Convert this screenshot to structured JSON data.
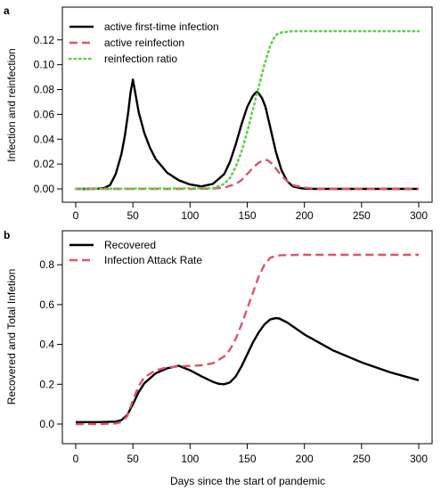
{
  "xlabel": "Days since the start of pandemic",
  "chart_data": [
    {
      "panel": "a",
      "type": "line",
      "xlabel": "",
      "ylabel": "Infection and reinfection",
      "xlim": [
        0,
        300
      ],
      "ylim": [
        0,
        0.127
      ],
      "xticks": [
        0,
        50,
        100,
        150,
        200,
        250,
        300
      ],
      "yticks": [
        0.0,
        0.02,
        0.04,
        0.06,
        0.08,
        0.1,
        0.12
      ],
      "ytick_labels": [
        "0.00",
        "0.02",
        "0.04",
        "0.06",
        "0.08",
        "0.10",
        "0.12"
      ],
      "legend": "top-left",
      "grid": false,
      "series": [
        {
          "name": "active first-time infection",
          "color": "#000000",
          "style": "solid",
          "x": [
            0,
            10,
            20,
            25,
            30,
            35,
            40,
            43,
            46,
            48,
            50,
            52,
            55,
            60,
            65,
            70,
            80,
            90,
            100,
            110,
            120,
            130,
            135,
            140,
            145,
            150,
            155,
            158,
            160,
            163,
            166,
            170,
            175,
            180,
            185,
            190,
            195,
            200,
            210,
            220,
            250,
            300
          ],
          "y": [
            0,
            0,
            0.0002,
            0.0008,
            0.003,
            0.012,
            0.028,
            0.043,
            0.062,
            0.078,
            0.088,
            0.078,
            0.062,
            0.045,
            0.033,
            0.024,
            0.013,
            0.007,
            0.0035,
            0.002,
            0.004,
            0.012,
            0.022,
            0.036,
            0.052,
            0.066,
            0.075,
            0.078,
            0.077,
            0.073,
            0.066,
            0.05,
            0.03,
            0.015,
            0.006,
            0.002,
            0.0008,
            0.0002,
            0,
            0,
            0,
            0
          ]
        },
        {
          "name": "active reinfection",
          "color": "#DF536B",
          "style": "dashed",
          "x": [
            0,
            100,
            120,
            130,
            140,
            145,
            150,
            155,
            160,
            165,
            168,
            172,
            178,
            185,
            190,
            200,
            210,
            300
          ],
          "y": [
            0,
            0,
            0.0002,
            0.001,
            0.004,
            0.007,
            0.012,
            0.017,
            0.021,
            0.0235,
            0.023,
            0.02,
            0.013,
            0.006,
            0.003,
            0.001,
            0,
            0
          ]
        },
        {
          "name": "reinfection ratio",
          "color": "#61D04F",
          "style": "dotted",
          "x": [
            0,
            120,
            130,
            135,
            140,
            145,
            150,
            155,
            160,
            165,
            170,
            173,
            176,
            180,
            185,
            190,
            200,
            220,
            250,
            300
          ],
          "y": [
            0,
            0.0005,
            0.004,
            0.009,
            0.018,
            0.03,
            0.046,
            0.064,
            0.082,
            0.1,
            0.115,
            0.121,
            0.1245,
            0.126,
            0.1265,
            0.127,
            0.127,
            0.127,
            0.127,
            0.127
          ]
        }
      ]
    },
    {
      "panel": "b",
      "type": "line",
      "xlabel": "Days since the start of pandemic",
      "ylabel": "Recovered and Total Infetion",
      "xlim": [
        0,
        300
      ],
      "ylim": [
        0,
        0.85
      ],
      "xticks": [
        0,
        50,
        100,
        150,
        200,
        250,
        300
      ],
      "yticks": [
        0.0,
        0.2,
        0.4,
        0.6,
        0.8
      ],
      "ytick_labels": [
        "0.0",
        "0.2",
        "0.4",
        "0.6",
        "0.8"
      ],
      "legend": "top-left",
      "grid": false,
      "series": [
        {
          "name": "Recovered",
          "color": "#000000",
          "style": "solid",
          "x": [
            0,
            20,
            35,
            40,
            45,
            50,
            55,
            60,
            70,
            80,
            90,
            100,
            110,
            120,
            125,
            130,
            135,
            140,
            145,
            150,
            155,
            160,
            165,
            170,
            175,
            178,
            185,
            200,
            225,
            250,
            275,
            300
          ],
          "y": [
            0.01,
            0.01,
            0.012,
            0.02,
            0.045,
            0.1,
            0.16,
            0.205,
            0.255,
            0.28,
            0.293,
            0.27,
            0.24,
            0.212,
            0.202,
            0.2,
            0.21,
            0.24,
            0.29,
            0.35,
            0.41,
            0.46,
            0.5,
            0.525,
            0.532,
            0.53,
            0.51,
            0.45,
            0.37,
            0.31,
            0.26,
            0.22
          ]
        },
        {
          "name": "Infection Attack Rate",
          "color": "#DF536B",
          "style": "dashed",
          "x": [
            0,
            20,
            35,
            40,
            45,
            50,
            55,
            60,
            70,
            80,
            90,
            100,
            110,
            120,
            130,
            135,
            140,
            145,
            150,
            155,
            160,
            165,
            170,
            175,
            180,
            200,
            250,
            300
          ],
          "y": [
            0,
            0,
            0.003,
            0.01,
            0.04,
            0.12,
            0.19,
            0.235,
            0.27,
            0.285,
            0.29,
            0.292,
            0.295,
            0.305,
            0.34,
            0.375,
            0.43,
            0.5,
            0.58,
            0.66,
            0.74,
            0.8,
            0.835,
            0.845,
            0.848,
            0.85,
            0.85,
            0.85
          ]
        }
      ]
    }
  ]
}
